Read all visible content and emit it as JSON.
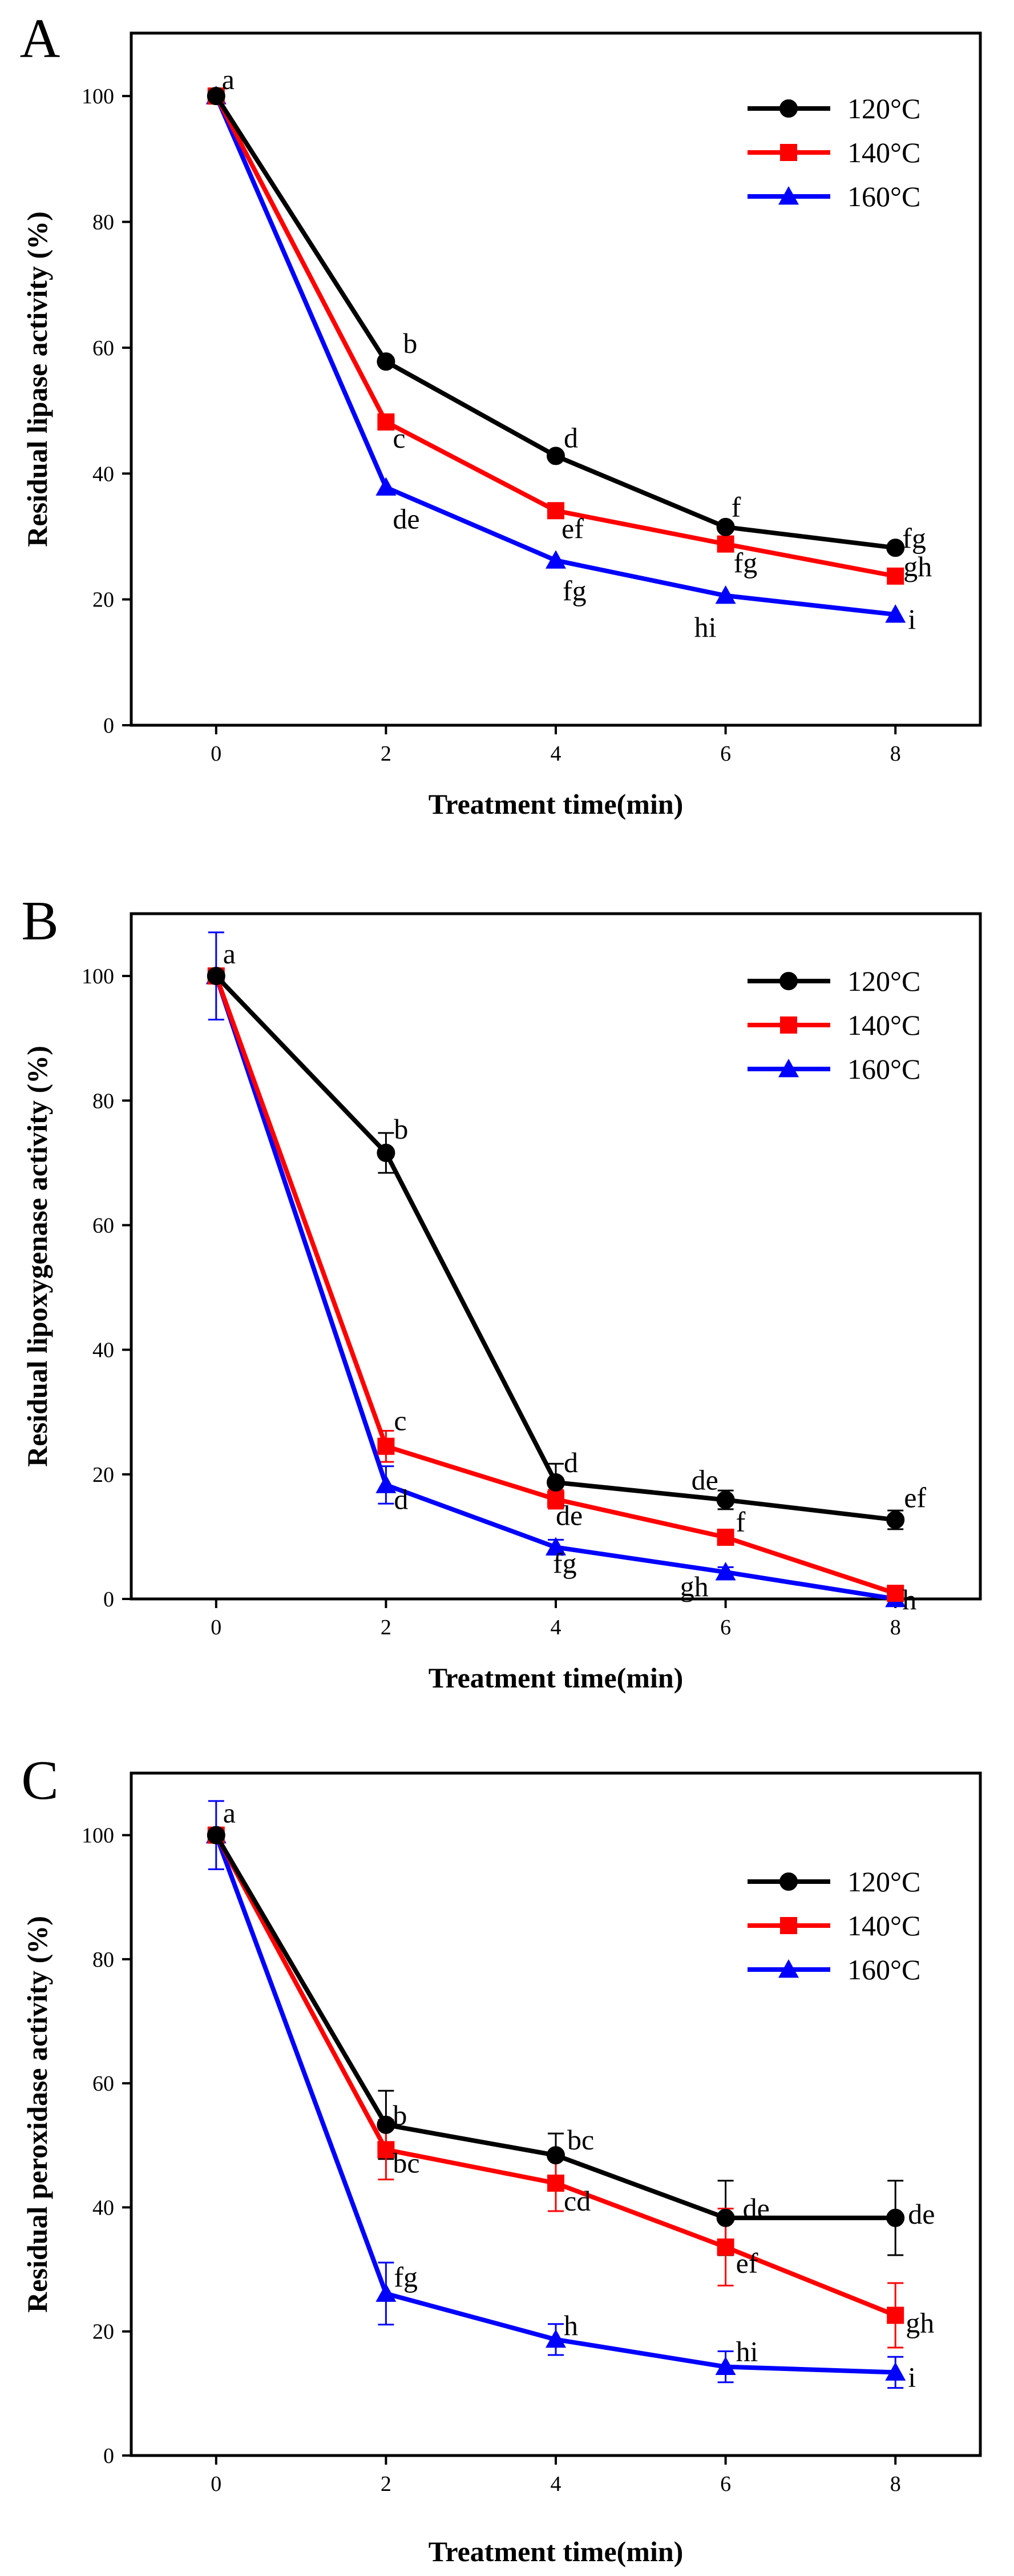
{
  "chart_data": [
    {
      "panel": "A",
      "type": "line",
      "xlabel": "Treatment time(min)",
      "ylabel": "Residual lipase activity (%)",
      "xlim": [
        -1,
        9
      ],
      "ylim": [
        0,
        110
      ],
      "x_ticks": [
        0,
        2,
        4,
        6,
        8
      ],
      "y_ticks": [
        0,
        20,
        40,
        60,
        80,
        100
      ],
      "legend_position": "top-right",
      "x": [
        0,
        2,
        4,
        6,
        8
      ],
      "series": [
        {
          "name": "120°C",
          "color": "#000000",
          "marker": "circle",
          "values": [
            100,
            57.8,
            42.8,
            31.5,
            28.2
          ],
          "errors": [
            0,
            0,
            0,
            0,
            0
          ],
          "labels": [
            "",
            "b",
            "d",
            "f",
            "fg"
          ]
        },
        {
          "name": "140°C",
          "color": "#ff0000",
          "marker": "square",
          "values": [
            100,
            48.2,
            34.1,
            28.8,
            23.7
          ],
          "errors": [
            0,
            0,
            0,
            0,
            0
          ],
          "labels": [
            "a",
            "c",
            "ef",
            "fg",
            "gh"
          ]
        },
        {
          "name": "160°C",
          "color": "#0000ff",
          "marker": "triangle",
          "values": [
            100,
            37.8,
            26.2,
            20.6,
            17.6
          ],
          "errors": [
            0,
            0,
            0,
            0,
            0
          ],
          "labels": [
            "",
            "de",
            "fg",
            "hi",
            "i"
          ]
        }
      ]
    },
    {
      "panel": "B",
      "type": "line",
      "xlabel": "Treatment time(min)",
      "ylabel": "Residual lipoxygenase activity (%)",
      "xlim": [
        -1,
        9
      ],
      "ylim": [
        0,
        110
      ],
      "x_ticks": [
        0,
        2,
        4,
        6,
        8
      ],
      "y_ticks": [
        0,
        20,
        40,
        60,
        80,
        100
      ],
      "legend_position": "top-right",
      "x": [
        0,
        2,
        4,
        6,
        8
      ],
      "series": [
        {
          "name": "120°C",
          "color": "#000000",
          "marker": "circle",
          "values": [
            100,
            71.6,
            18.7,
            15.9,
            12.7
          ],
          "errors": [
            0,
            3.2,
            3.0,
            1.5,
            1.5
          ],
          "labels": [
            "",
            "b",
            "d",
            "de",
            "ef"
          ]
        },
        {
          "name": "140°C",
          "color": "#ff0000",
          "marker": "square",
          "values": [
            100,
            24.5,
            16.0,
            9.9,
            0.9
          ],
          "errors": [
            0,
            2.5,
            1.5,
            1.0,
            0.6
          ],
          "labels": [
            "a",
            "c",
            "de",
            "f",
            "h"
          ]
        },
        {
          "name": "160°C",
          "color": "#0000ff",
          "marker": "triangle",
          "values": [
            100,
            18.3,
            8.3,
            4.3,
            0.0
          ],
          "errors": [
            7.0,
            3.0,
            1.2,
            0.8,
            0.3
          ],
          "labels": [
            "",
            "d",
            "fg",
            "gh",
            ""
          ]
        }
      ]
    },
    {
      "panel": "C",
      "type": "line",
      "xlabel": "Treatment time(min)",
      "ylabel": "Residual peroxidase activity (%)",
      "xlim": [
        -1,
        9
      ],
      "ylim": [
        0,
        110
      ],
      "x_ticks": [
        0,
        2,
        4,
        6,
        8
      ],
      "y_ticks": [
        0,
        20,
        40,
        60,
        80,
        100
      ],
      "legend_position": "top-right",
      "x": [
        0,
        2,
        4,
        6,
        8
      ],
      "series": [
        {
          "name": "120°C",
          "color": "#000000",
          "marker": "circle",
          "values": [
            100,
            53.3,
            48.4,
            38.3,
            38.3
          ],
          "errors": [
            0,
            5.5,
            3.5,
            6.0,
            6.0
          ],
          "labels": [
            "",
            "b",
            "bc",
            "de",
            "de"
          ]
        },
        {
          "name": "140°C",
          "color": "#ff0000",
          "marker": "square",
          "values": [
            100,
            49.3,
            43.9,
            33.6,
            22.6
          ],
          "errors": [
            0,
            4.8,
            4.5,
            6.2,
            5.2
          ],
          "labels": [
            "a",
            "bc",
            "cd",
            "ef",
            "gh"
          ]
        },
        {
          "name": "160°C",
          "color": "#0000ff",
          "marker": "triangle",
          "values": [
            100,
            26.1,
            18.7,
            14.3,
            13.4
          ],
          "errors": [
            5.5,
            5.0,
            2.5,
            2.5,
            2.5
          ],
          "labels": [
            "",
            "fg",
            "h",
            "hi",
            "i"
          ]
        }
      ]
    }
  ]
}
